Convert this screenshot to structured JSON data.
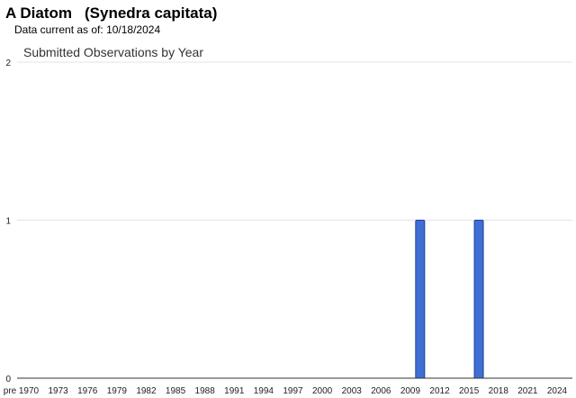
{
  "header": {
    "common_name": "A Diatom",
    "scientific_name": "(Synedra capitata)",
    "data_current_label": "Data current as of:",
    "data_current_date": "10/18/2024"
  },
  "chart_data": {
    "type": "bar",
    "title": "Submitted Observations by Year",
    "xlabel": "",
    "ylabel": "",
    "ylim": [
      0,
      2
    ],
    "y_ticks": [
      0,
      1,
      2
    ],
    "x_tick_labels": [
      "pre",
      "1970",
      "1973",
      "1976",
      "1979",
      "1982",
      "1985",
      "1988",
      "1991",
      "1994",
      "1997",
      "2000",
      "2003",
      "2006",
      "2009",
      "2012",
      "2015",
      "2018",
      "2021",
      "2024"
    ],
    "categories": [
      "2010",
      "2016"
    ],
    "values": [
      1,
      1
    ],
    "bar_color": "#3f6fd4",
    "grid": true,
    "legend": "none"
  }
}
